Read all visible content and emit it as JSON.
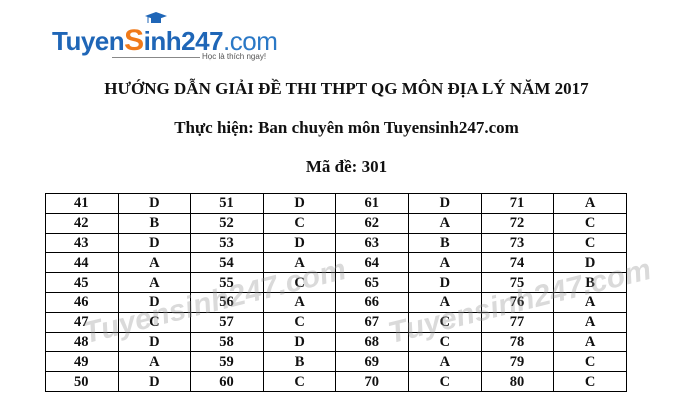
{
  "logo": {
    "brand": "TuyenSinh247.com",
    "tagline": "Học là thích ngay!"
  },
  "heading": "HƯỚNG DẪN GIẢI ĐỀ THI THPT QG MÔN ĐỊA LÝ NĂM 2017",
  "subheading": "Thực hiện: Ban chuyên môn Tuyensinh247.com",
  "exam_code": "Mã đề: 301",
  "watermark": "Tuyensinh247.com",
  "rows": [
    [
      "41",
      "D",
      "51",
      "D",
      "61",
      "D",
      "71",
      "A"
    ],
    [
      "42",
      "B",
      "52",
      "C",
      "62",
      "A",
      "72",
      "C"
    ],
    [
      "43",
      "D",
      "53",
      "D",
      "63",
      "B",
      "73",
      "C"
    ],
    [
      "44",
      "A",
      "54",
      "A",
      "64",
      "A",
      "74",
      "D"
    ],
    [
      "45",
      "A",
      "55",
      "C",
      "65",
      "D",
      "75",
      "B"
    ],
    [
      "46",
      "D",
      "56",
      "A",
      "66",
      "A",
      "76",
      "A"
    ],
    [
      "47",
      "C",
      "57",
      "C",
      "67",
      "C",
      "77",
      "A"
    ],
    [
      "48",
      "D",
      "58",
      "D",
      "68",
      "C",
      "78",
      "A"
    ],
    [
      "49",
      "A",
      "59",
      "B",
      "69",
      "A",
      "79",
      "C"
    ],
    [
      "50",
      "D",
      "60",
      "C",
      "70",
      "C",
      "80",
      "C"
    ]
  ]
}
